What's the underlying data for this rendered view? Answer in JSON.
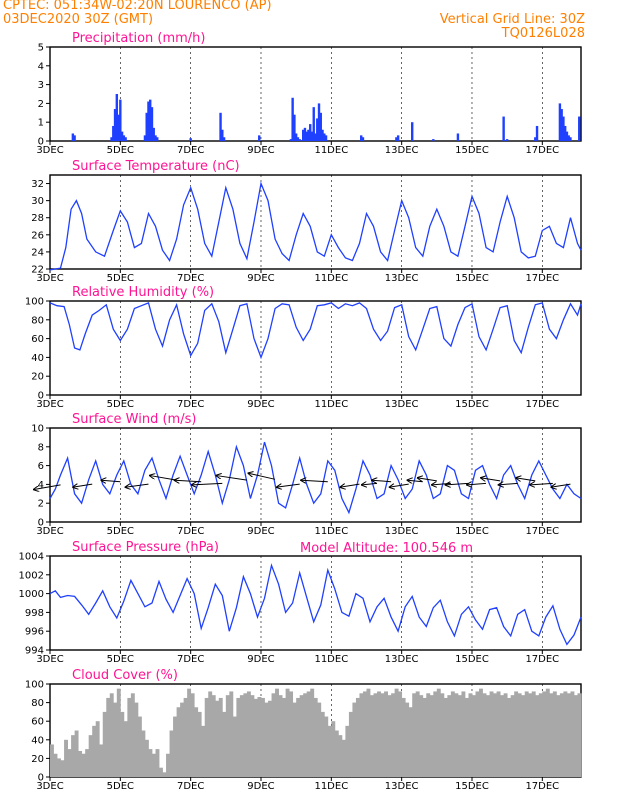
{
  "header": {
    "line1": "CPTEC:   051:34W-02:20N   LOURENCO (AP)",
    "line2": "03DEC2020 30Z (GMT)",
    "grid_note": "Vertical Grid Line: 30Z",
    "code": "TQ0126L028"
  },
  "model_altitude": "Model Altitude: 100.546  m",
  "colors": {
    "header": "#ff8000",
    "title": "#ff1493",
    "series": "#2040ff",
    "cloud": "#a8a8a8",
    "wind_arrow": "#000000"
  },
  "x_axis": {
    "labels": [
      "3DEC",
      "5DEC",
      "7DEC",
      "9DEC",
      "11DEC",
      "13DEC",
      "15DEC",
      "17DEC"
    ],
    "label_days": [
      3,
      5,
      7,
      9,
      11,
      13,
      15,
      17
    ],
    "range_days": [
      3,
      18.1
    ]
  },
  "chart_data": [
    {
      "id": "precip",
      "type": "bar",
      "title": "Precipitation (mm/h)",
      "ylim": [
        0,
        5
      ],
      "yticks": [
        0,
        1,
        2,
        3,
        4,
        5
      ],
      "color": "#2040ff",
      "x": [
        3.65,
        3.7,
        4.75,
        4.8,
        4.85,
        4.9,
        4.95,
        5.0,
        5.05,
        5.1,
        5.15,
        5.7,
        5.75,
        5.8,
        5.85,
        5.9,
        5.95,
        6.0,
        6.05,
        7.0,
        7.85,
        7.9,
        7.95,
        8.95,
        9.85,
        9.9,
        9.95,
        10.0,
        10.05,
        10.1,
        10.2,
        10.25,
        10.3,
        10.35,
        10.4,
        10.45,
        10.5,
        10.55,
        10.6,
        10.65,
        10.7,
        10.75,
        10.8,
        10.85,
        11.85,
        11.9,
        12.85,
        12.9,
        13.3,
        13.9,
        14.6,
        15.9,
        16.0,
        16.8,
        16.85,
        17.5,
        17.55,
        17.6,
        17.65,
        17.7,
        17.75,
        17.8,
        18.05
      ],
      "values": [
        0.4,
        0.3,
        0.2,
        0.8,
        1.7,
        2.5,
        1.4,
        2.2,
        0.5,
        0.3,
        0.2,
        0.3,
        1.5,
        2.1,
        2.2,
        1.8,
        0.7,
        0.3,
        0.2,
        0.15,
        1.5,
        0.6,
        0.2,
        0.3,
        0.1,
        2.3,
        1.4,
        0.4,
        0.2,
        0.1,
        0.6,
        0.7,
        0.5,
        0.6,
        0.9,
        0.5,
        1.8,
        0.4,
        1.2,
        2.0,
        1.5,
        0.6,
        0.4,
        0.3,
        0.3,
        0.2,
        0.2,
        0.3,
        1.0,
        0.1,
        0.4,
        1.3,
        0.1,
        0.2,
        0.8,
        2.0,
        1.7,
        1.3,
        0.8,
        0.5,
        0.3,
        0.2,
        1.3
      ]
    },
    {
      "id": "temp",
      "type": "line",
      "title": "Surface Temperature (nC)",
      "ylim": [
        22,
        33
      ],
      "yticks": [
        22,
        24,
        26,
        28,
        30,
        32
      ],
      "color": "#2040ff",
      "x": [
        3.0,
        3.15,
        3.3,
        3.45,
        3.6,
        3.75,
        3.9,
        4.05,
        4.3,
        4.55,
        4.8,
        5.0,
        5.2,
        5.4,
        5.6,
        5.8,
        6.0,
        6.2,
        6.4,
        6.6,
        6.8,
        7.0,
        7.2,
        7.4,
        7.6,
        7.8,
        8.0,
        8.2,
        8.4,
        8.6,
        8.8,
        9.0,
        9.2,
        9.4,
        9.6,
        9.8,
        10.0,
        10.2,
        10.4,
        10.6,
        10.8,
        11.0,
        11.2,
        11.4,
        11.6,
        11.8,
        12.0,
        12.2,
        12.4,
        12.6,
        12.8,
        13.0,
        13.2,
        13.4,
        13.6,
        13.8,
        14.0,
        14.2,
        14.4,
        14.6,
        14.8,
        15.0,
        15.2,
        15.4,
        15.6,
        15.8,
        16.0,
        16.2,
        16.4,
        16.6,
        16.8,
        17.0,
        17.2,
        17.4,
        17.6,
        17.8,
        18.0,
        18.1
      ],
      "values": [
        21.9,
        22.0,
        22.1,
        24.5,
        29.0,
        30.0,
        28.5,
        25.5,
        24.0,
        23.5,
        26.5,
        28.8,
        27.5,
        24.5,
        25.0,
        28.5,
        27.0,
        24.2,
        23.0,
        25.5,
        29.5,
        31.5,
        29.0,
        25.0,
        23.5,
        27.5,
        31.5,
        29.0,
        25.0,
        23.2,
        27.5,
        32.0,
        30.0,
        25.5,
        23.8,
        23.0,
        26.0,
        28.5,
        27.0,
        24.0,
        23.5,
        26.0,
        24.5,
        23.3,
        23.0,
        25.0,
        28.5,
        27.0,
        24.0,
        23.0,
        26.5,
        30.0,
        28.0,
        24.5,
        23.5,
        27.0,
        29.0,
        27.0,
        24.0,
        23.5,
        27.0,
        30.5,
        28.5,
        24.5,
        24.0,
        27.5,
        30.5,
        28.0,
        24.0,
        23.3,
        23.5,
        26.5,
        27.0,
        25.0,
        24.5,
        28.0,
        25.0,
        24.2
      ]
    },
    {
      "id": "rh",
      "type": "line",
      "title": "Relative Humidity (%)",
      "ylim": [
        0,
        100
      ],
      "yticks": [
        0,
        20,
        40,
        60,
        80,
        100
      ],
      "color": "#2040ff",
      "x": [
        3.0,
        3.2,
        3.4,
        3.55,
        3.7,
        3.85,
        4.0,
        4.2,
        4.4,
        4.6,
        4.8,
        5.0,
        5.2,
        5.4,
        5.6,
        5.8,
        6.0,
        6.2,
        6.4,
        6.6,
        6.8,
        7.0,
        7.2,
        7.4,
        7.6,
        7.8,
        8.0,
        8.2,
        8.4,
        8.6,
        8.8,
        9.0,
        9.2,
        9.4,
        9.6,
        9.8,
        10.0,
        10.2,
        10.4,
        10.6,
        10.8,
        11.0,
        11.2,
        11.4,
        11.6,
        11.8,
        12.0,
        12.2,
        12.4,
        12.6,
        12.8,
        13.0,
        13.2,
        13.4,
        13.6,
        13.8,
        14.0,
        14.2,
        14.4,
        14.6,
        14.8,
        15.0,
        15.2,
        15.4,
        15.6,
        15.8,
        16.0,
        16.2,
        16.4,
        16.6,
        16.8,
        17.0,
        17.2,
        17.4,
        17.6,
        17.8,
        18.0,
        18.1
      ],
      "values": [
        98,
        95,
        94,
        75,
        50,
        48,
        65,
        85,
        90,
        96,
        70,
        58,
        70,
        92,
        95,
        98,
        70,
        52,
        80,
        96,
        65,
        42,
        55,
        90,
        97,
        78,
        45,
        70,
        95,
        97,
        60,
        40,
        60,
        92,
        97,
        96,
        72,
        58,
        70,
        95,
        96,
        98,
        92,
        97,
        95,
        98,
        92,
        70,
        58,
        68,
        93,
        96,
        62,
        48,
        70,
        92,
        94,
        60,
        52,
        75,
        93,
        97,
        62,
        48,
        70,
        93,
        95,
        58,
        45,
        72,
        96,
        98,
        70,
        60,
        80,
        97,
        85,
        97
      ]
    },
    {
      "id": "wind",
      "type": "line",
      "title": "Surface Wind (m/s)",
      "ylim": [
        0,
        10
      ],
      "yticks": [
        0,
        2,
        4,
        6,
        8,
        10
      ],
      "color": "#2040ff",
      "x": [
        3.0,
        3.15,
        3.3,
        3.5,
        3.7,
        3.9,
        4.1,
        4.3,
        4.5,
        4.7,
        4.9,
        5.1,
        5.3,
        5.5,
        5.7,
        5.9,
        6.1,
        6.3,
        6.5,
        6.7,
        6.9,
        7.1,
        7.3,
        7.5,
        7.7,
        7.9,
        8.1,
        8.3,
        8.5,
        8.7,
        8.9,
        9.1,
        9.3,
        9.5,
        9.7,
        9.9,
        10.1,
        10.3,
        10.5,
        10.7,
        10.9,
        11.1,
        11.3,
        11.5,
        11.7,
        11.9,
        12.1,
        12.3,
        12.5,
        12.7,
        12.9,
        13.1,
        13.3,
        13.5,
        13.7,
        13.9,
        14.1,
        14.3,
        14.5,
        14.7,
        14.9,
        15.1,
        15.3,
        15.5,
        15.7,
        15.9,
        16.1,
        16.3,
        16.5,
        16.7,
        16.9,
        17.1,
        17.3,
        17.5,
        17.7,
        17.9,
        18.1
      ],
      "values": [
        2.5,
        3.5,
        5.0,
        6.8,
        3.0,
        2.0,
        4.5,
        6.5,
        4.0,
        3.0,
        5.0,
        6.5,
        4.0,
        3.0,
        5.5,
        6.8,
        4.5,
        2.5,
        5.0,
        7.0,
        5.0,
        3.0,
        5.0,
        7.5,
        5.0,
        2.0,
        4.5,
        8.0,
        6.0,
        2.5,
        5.0,
        8.5,
        6.0,
        2.0,
        1.5,
        4.0,
        6.8,
        4.0,
        2.0,
        3.0,
        6.5,
        5.5,
        2.5,
        1.0,
        3.5,
        6.5,
        5.0,
        2.5,
        3.0,
        6.0,
        4.5,
        2.5,
        3.5,
        6.5,
        5.0,
        2.5,
        3.0,
        6.0,
        5.5,
        3.0,
        2.5,
        5.5,
        6.0,
        4.0,
        2.5,
        5.0,
        6.0,
        4.0,
        2.5,
        5.0,
        6.5,
        5.0,
        3.5,
        2.5,
        4.0,
        3.0,
        2.5
      ],
      "arrows_x": [
        3.3,
        4.2,
        5.0,
        5.8,
        6.6,
        7.3,
        7.9,
        8.6,
        9.4,
        10.1,
        10.9,
        11.8,
        12.3,
        12.7,
        13.2,
        13.6,
        14.0,
        14.4,
        14.9,
        15.4,
        15.8,
        16.3,
        16.8,
        17.3,
        17.8
      ],
      "arrows_u": [
        -0.7,
        -0.5,
        -0.5,
        -0.6,
        -0.7,
        -0.7,
        -0.8,
        -0.8,
        -0.7,
        -0.6,
        -0.7,
        -0.5,
        -0.4,
        -0.5,
        -0.5,
        -0.4,
        -0.5,
        -0.5,
        -0.6,
        -0.5,
        -0.5,
        -0.5,
        -0.5,
        -0.6,
        -0.5
      ],
      "arrows_v": [
        -0.3,
        -0.2,
        0.1,
        -0.2,
        0.3,
        0.1,
        -0.1,
        0.3,
        0.4,
        -0.2,
        0.1,
        -0.2,
        -0.1,
        0.1,
        -0.2,
        0.1,
        0.2,
        -0.1,
        -0.1,
        -0.1,
        0.2,
        -0.1,
        0.2,
        -0.1,
        -0.2
      ]
    },
    {
      "id": "pressure",
      "type": "line",
      "title": "Surface Pressure (hPa)",
      "ylim": [
        994,
        1004
      ],
      "yticks": [
        994,
        996,
        998,
        1000,
        1002,
        1004
      ],
      "color": "#2040ff",
      "x": [
        3.0,
        3.15,
        3.3,
        3.5,
        3.7,
        3.9,
        4.1,
        4.3,
        4.5,
        4.7,
        4.9,
        5.1,
        5.3,
        5.5,
        5.7,
        5.9,
        6.1,
        6.3,
        6.5,
        6.7,
        6.9,
        7.1,
        7.3,
        7.5,
        7.7,
        7.9,
        8.1,
        8.3,
        8.5,
        8.7,
        8.9,
        9.1,
        9.3,
        9.5,
        9.7,
        9.9,
        10.1,
        10.3,
        10.5,
        10.7,
        10.9,
        11.1,
        11.3,
        11.5,
        11.7,
        11.9,
        12.1,
        12.3,
        12.5,
        12.7,
        12.9,
        13.1,
        13.3,
        13.5,
        13.7,
        13.9,
        14.1,
        14.3,
        14.5,
        14.7,
        14.9,
        15.1,
        15.3,
        15.5,
        15.7,
        15.9,
        16.1,
        16.3,
        16.5,
        16.7,
        16.9,
        17.1,
        17.3,
        17.5,
        17.7,
        17.9,
        18.1
      ],
      "values": [
        1000.0,
        1000.3,
        999.6,
        999.8,
        999.7,
        998.8,
        997.8,
        999.0,
        1000.3,
        998.6,
        997.4,
        999.2,
        1001.4,
        1000.0,
        998.6,
        999.0,
        1001.3,
        999.4,
        998.0,
        999.8,
        1001.6,
        1000.0,
        996.3,
        998.5,
        1001.0,
        999.8,
        996.0,
        998.5,
        1001.8,
        1000.0,
        997.5,
        999.5,
        1003.0,
        1001.0,
        998.0,
        999.0,
        1002.2,
        999.6,
        997.0,
        998.8,
        1002.5,
        1000.5,
        998.0,
        997.6,
        1000.0,
        999.5,
        997.0,
        998.6,
        999.5,
        997.5,
        996.0,
        998.6,
        999.7,
        997.5,
        996.5,
        998.5,
        999.3,
        997.0,
        995.5,
        997.8,
        998.6,
        997.2,
        996.2,
        998.3,
        998.5,
        996.5,
        995.5,
        997.8,
        998.3,
        996.0,
        995.5,
        997.5,
        998.7,
        996.2,
        994.6,
        995.6,
        997.5
      ]
    },
    {
      "id": "cloud",
      "type": "bar",
      "title": "Cloud Cover (%)",
      "ylim": [
        0,
        100
      ],
      "yticks": [
        0,
        20,
        40,
        60,
        80,
        100
      ],
      "color": "#a8a8a8",
      "x": [
        3.0,
        3.1,
        3.2,
        3.3,
        3.4,
        3.5,
        3.6,
        3.7,
        3.8,
        3.9,
        4.0,
        4.1,
        4.2,
        4.3,
        4.4,
        4.5,
        4.6,
        4.7,
        4.8,
        4.9,
        5.0,
        5.1,
        5.2,
        5.3,
        5.4,
        5.5,
        5.6,
        5.7,
        5.8,
        5.9,
        6.0,
        6.1,
        6.2,
        6.3,
        6.4,
        6.5,
        6.6,
        6.7,
        6.8,
        6.9,
        7.0,
        7.1,
        7.2,
        7.3,
        7.4,
        7.5,
        7.6,
        7.7,
        7.8,
        7.9,
        8.0,
        8.1,
        8.2,
        8.3,
        8.4,
        8.5,
        8.6,
        8.7,
        8.8,
        8.9,
        9.0,
        9.1,
        9.2,
        9.3,
        9.4,
        9.5,
        9.6,
        9.7,
        9.8,
        9.9,
        10.0,
        10.1,
        10.2,
        10.3,
        10.4,
        10.5,
        10.6,
        10.7,
        10.8,
        10.9,
        11.0,
        11.1,
        11.2,
        11.3,
        11.4,
        11.5,
        11.6,
        11.7,
        11.8,
        11.9,
        12.0,
        12.1,
        12.2,
        12.3,
        12.4,
        12.5,
        12.6,
        12.7,
        12.8,
        12.9,
        13.0,
        13.1,
        13.2,
        13.3,
        13.4,
        13.5,
        13.6,
        13.7,
        13.8,
        13.9,
        14.0,
        14.1,
        14.2,
        14.3,
        14.4,
        14.5,
        14.6,
        14.7,
        14.8,
        14.9,
        15.0,
        15.1,
        15.2,
        15.3,
        15.4,
        15.5,
        15.6,
        15.7,
        15.8,
        15.9,
        16.0,
        16.1,
        16.2,
        16.3,
        16.4,
        16.5,
        16.6,
        16.7,
        16.8,
        16.9,
        17.0,
        17.1,
        17.2,
        17.3,
        17.4,
        17.5,
        17.6,
        17.7,
        17.8,
        17.9,
        18.0
      ],
      "values": [
        35,
        25,
        20,
        18,
        40,
        30,
        45,
        50,
        28,
        25,
        30,
        45,
        55,
        60,
        35,
        70,
        85,
        90,
        80,
        95,
        70,
        60,
        85,
        90,
        80,
        65,
        50,
        40,
        30,
        25,
        30,
        10,
        5,
        25,
        50,
        65,
        75,
        80,
        85,
        95,
        90,
        75,
        70,
        55,
        85,
        92,
        88,
        82,
        85,
        70,
        88,
        92,
        65,
        85,
        88,
        90,
        92,
        88,
        84,
        86,
        85,
        80,
        82,
        90,
        95,
        88,
        85,
        95,
        92,
        80,
        85,
        88,
        90,
        92,
        95,
        85,
        80,
        70,
        65,
        55,
        60,
        50,
        45,
        40,
        55,
        70,
        80,
        85,
        90,
        92,
        95,
        88,
        90,
        92,
        90,
        92,
        88,
        90,
        95,
        92,
        85,
        80,
        75,
        90,
        92,
        88,
        85,
        90,
        88,
        92,
        95,
        90,
        85,
        88,
        92,
        90,
        88,
        92,
        85,
        90,
        88,
        92,
        95,
        90,
        88,
        92,
        90,
        92,
        88,
        90,
        85,
        88,
        92,
        90,
        88,
        92,
        90,
        92,
        88,
        90,
        92,
        95,
        90,
        92,
        88,
        90,
        92,
        90,
        92,
        88,
        90
      ]
    }
  ]
}
